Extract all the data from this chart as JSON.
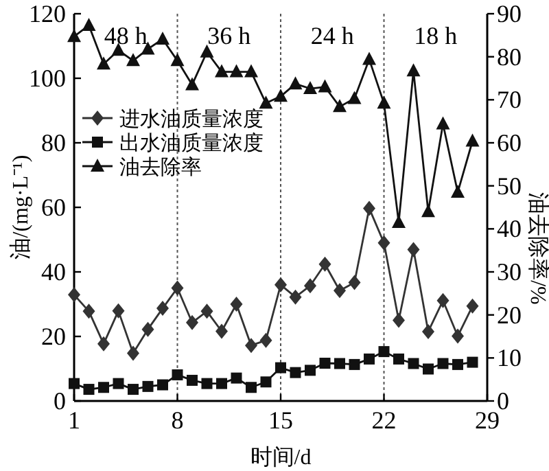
{
  "chart_data": {
    "type": "line",
    "x": [
      1,
      2,
      3,
      4,
      5,
      6,
      7,
      8,
      9,
      10,
      11,
      12,
      13,
      14,
      15,
      16,
      17,
      18,
      19,
      20,
      21,
      22,
      23,
      24,
      25,
      26,
      27,
      28
    ],
    "xlim": [
      1,
      29
    ],
    "xticks": [
      1,
      8,
      15,
      22,
      29
    ],
    "ylim": [
      0,
      120
    ],
    "yticks": [
      0,
      20,
      40,
      60,
      80,
      100,
      120
    ],
    "y2lim": [
      0,
      90
    ],
    "y2ticks": [
      0,
      10,
      20,
      30,
      40,
      50,
      60,
      70,
      80,
      90
    ],
    "xlabel": "时间/d",
    "ylabel": "油/(mg·L⁻¹)",
    "y2label": "油去除率/%",
    "grid": false,
    "legend": "left",
    "series": [
      {
        "name": "进水油质量浓度",
        "color": "#333333",
        "marker": "diamond",
        "values": [
          32.9,
          27.8,
          17.7,
          27.9,
          14.8,
          22.2,
          28.7,
          35.0,
          24.3,
          27.8,
          21.6,
          30.0,
          17.2,
          18.8,
          36.0,
          32.2,
          35.7,
          42.4,
          34.2,
          36.7,
          59.7,
          49.0,
          25.0,
          46.9,
          21.5,
          31.1,
          20.1,
          29.4
        ]
      },
      {
        "name": "出水油质量浓度",
        "color": "#111111",
        "marker": "square",
        "values": [
          5.4,
          3.6,
          4.2,
          5.4,
          3.6,
          4.5,
          5.0,
          8.1,
          6.4,
          5.4,
          5.4,
          7.1,
          4.2,
          5.9,
          10.3,
          8.8,
          9.5,
          11.7,
          11.6,
          11.3,
          13.0,
          15.3,
          13.0,
          11.6,
          9.9,
          11.6,
          11.3,
          12.0
        ]
      },
      {
        "name": "油去除率",
        "color": "#111111",
        "marker": "triangle",
        "axis": "y2",
        "values": [
          84.7,
          87.3,
          78.3,
          81.5,
          79.1,
          81.8,
          84.1,
          79.1,
          73.5,
          81.1,
          76.5,
          76.5,
          76.5,
          69.2,
          70.8,
          73.7,
          72.6,
          73.0,
          68.4,
          70.3,
          79.4,
          69.2,
          41.5,
          76.7,
          44.0,
          64.4,
          48.5,
          60.4
        ]
      }
    ],
    "ref_lines": [
      {
        "axis": "x",
        "value": 8,
        "line_style": "dotted",
        "color": "#555555"
      },
      {
        "axis": "x",
        "value": 15,
        "line_style": "dotted",
        "color": "#555555"
      },
      {
        "axis": "x",
        "value": 22,
        "line_style": "dotted",
        "color": "#555555"
      }
    ],
    "annotations": [
      "48 h",
      "36 h",
      "24 h",
      "18 h"
    ]
  }
}
